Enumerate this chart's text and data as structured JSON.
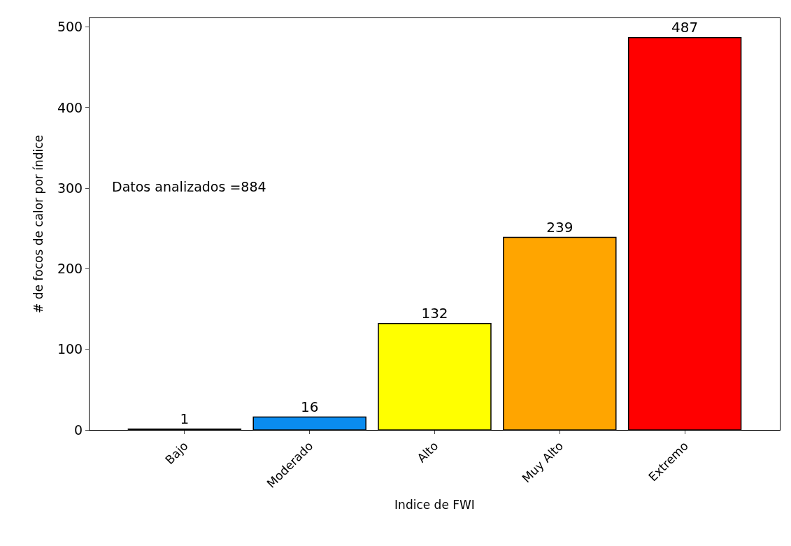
{
  "chart_data": {
    "type": "bar",
    "xlabel": "Indice de FWI",
    "ylabel": "# de focos de calor por índice",
    "categories": [
      "Bajo",
      "Moderado",
      "Alto",
      "Muy Alto",
      "Extremo"
    ],
    "values": [
      1,
      16,
      132,
      239,
      487
    ],
    "colors": [
      "#00a000",
      "#0a8cf0",
      "#ffff00",
      "#ffa500",
      "#ff0000"
    ],
    "ylim": [
      0,
      511
    ],
    "yticks": [
      0,
      100,
      200,
      300,
      400,
      500
    ],
    "data_labels": true,
    "annotations": [
      "Datos analizados =884"
    ]
  }
}
